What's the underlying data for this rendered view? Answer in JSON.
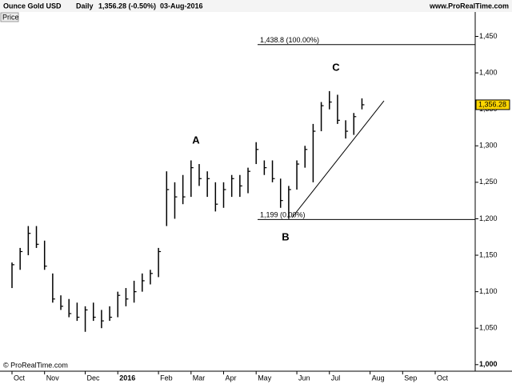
{
  "chart_data": {
    "type": "ohlc",
    "title": "Ounce Gold USD",
    "period": "Daily",
    "last": "1,356.28 (-0.50%)",
    "date": "03-Aug-2016",
    "source": "www.ProRealTime.com",
    "panel_label": "Price",
    "copyright": "© ProRealTime.com",
    "color": "#000000",
    "categories": [
      "Oct",
      null,
      null,
      null,
      "Nov",
      null,
      null,
      null,
      null,
      "Dec",
      null,
      null,
      null,
      "2016",
      null,
      null,
      null,
      null,
      "Feb",
      null,
      null,
      null,
      "Mar",
      null,
      null,
      null,
      "Apr",
      null,
      null,
      null,
      "May",
      null,
      null,
      null,
      null,
      "Jun",
      null,
      null,
      null,
      "Jul",
      null,
      null,
      null,
      null,
      "Aug",
      null,
      null,
      null,
      "Sep",
      null,
      null,
      null,
      "Oct"
    ],
    "high": [
      1140,
      1160,
      1190,
      1190,
      1170,
      1125,
      1095,
      1090,
      1085,
      1080,
      1085,
      1075,
      1080,
      1100,
      1105,
      1115,
      1125,
      1130,
      1160,
      1265,
      1250,
      1260,
      1280,
      1275,
      1265,
      1250,
      1250,
      1260,
      1260,
      1270,
      1305,
      1280,
      1280,
      1255,
      1245,
      1280,
      1300,
      1330,
      1360,
      1375,
      1370,
      1335,
      1345,
      1365,
      null,
      null,
      null,
      null,
      null,
      null,
      null,
      null,
      null
    ],
    "low": [
      1105,
      1130,
      1150,
      1160,
      1130,
      1085,
      1075,
      1065,
      1060,
      1045,
      1060,
      1050,
      1060,
      1065,
      1080,
      1085,
      1100,
      1110,
      1120,
      1190,
      1200,
      1220,
      1230,
      1245,
      1230,
      1210,
      1215,
      1230,
      1230,
      1235,
      1275,
      1260,
      1250,
      1215,
      1200,
      1240,
      1270,
      1250,
      1320,
      1350,
      1330,
      1310,
      1315,
      1350,
      null,
      null,
      null,
      null,
      null,
      null,
      null,
      null,
      null
    ],
    "close": [
      1137,
      1155,
      1180,
      1165,
      1135,
      1090,
      1080,
      1070,
      1065,
      1075,
      1065,
      1060,
      1065,
      1095,
      1090,
      1100,
      1115,
      1125,
      1155,
      1240,
      1230,
      1230,
      1270,
      1255,
      1255,
      1220,
      1240,
      1255,
      1245,
      1265,
      1295,
      1270,
      1255,
      1225,
      1240,
      1275,
      1295,
      1320,
      1355,
      1360,
      1335,
      1320,
      1340,
      1356.28,
      null,
      null,
      null,
      null,
      null,
      null,
      null,
      null,
      null
    ],
    "ylim": [
      991,
      1467
    ],
    "yticks": [
      {
        "value": 1000,
        "label": "1,000"
      },
      {
        "value": 1050,
        "label": "1,050"
      },
      {
        "value": 1100,
        "label": "1,100"
      },
      {
        "value": 1150,
        "label": "1,150"
      },
      {
        "value": 1200,
        "label": "1,200"
      },
      {
        "value": 1250,
        "label": "1,250"
      },
      {
        "value": 1300,
        "label": "1,300"
      },
      {
        "value": 1350,
        "label": "1,350"
      },
      {
        "value": 1400,
        "label": "1,400"
      },
      {
        "value": 1450,
        "label": "1,450"
      }
    ],
    "levels": [
      {
        "value": 1438.8,
        "label": "1,438.8 (100.00%)"
      },
      {
        "value": 1199,
        "label": "1,199 (0.00%)"
      }
    ],
    "last_price": {
      "value": 1356.28,
      "label": "1,356.28"
    },
    "annotations": [
      {
        "text": "A"
      },
      {
        "text": "B"
      },
      {
        "text": "C"
      }
    ]
  }
}
